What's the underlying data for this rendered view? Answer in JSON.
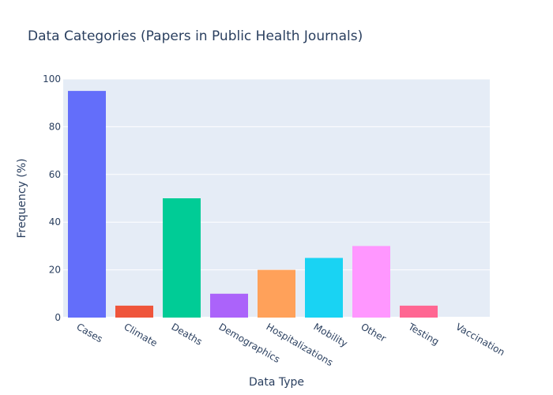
{
  "chart_data": {
    "type": "bar",
    "title": "Data Categories (Papers in Public Health Journals)",
    "xlabel": "Data Type",
    "ylabel": "Frequency (%)",
    "categories": [
      "Cases",
      "Climate",
      "Deaths",
      "Demographics",
      "Hospitalizations",
      "Mobility",
      "Other",
      "Testing",
      "Vaccination"
    ],
    "values": [
      95,
      5,
      50,
      10,
      20,
      25,
      30,
      5,
      0
    ],
    "colors": [
      "#636efa",
      "#EF553B",
      "#00cc96",
      "#ab63fa",
      "#FFA15A",
      "#19d3f3",
      "#FF97FF",
      "#FF6692",
      "#B6E880"
    ],
    "ylim": [
      0,
      100
    ],
    "yticks": [
      0,
      20,
      40,
      60,
      80,
      100
    ],
    "grid": true,
    "plot_background": "#e5ecf6"
  }
}
